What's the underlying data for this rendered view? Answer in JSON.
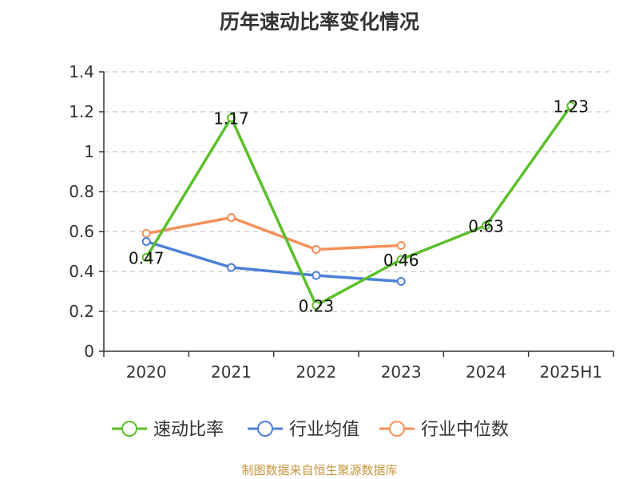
{
  "chart_data": {
    "type": "line",
    "title": "历年速动比率变化情况",
    "categories": [
      "2020",
      "2021",
      "2022",
      "2023",
      "2024",
      "2025H1"
    ],
    "ylim": [
      0,
      1.4
    ],
    "yticks": [
      "0",
      "0.2",
      "0.4",
      "0.6",
      "0.8",
      "1",
      "1.2",
      "1.4"
    ],
    "grid": true,
    "legend_position": "bottom",
    "series": [
      {
        "name": "速动比率",
        "color": "#5bbf2a",
        "values": [
          0.47,
          1.17,
          0.23,
          0.46,
          0.63,
          1.23
        ],
        "labels": [
          "0.47",
          "1.17",
          "0.23",
          "0.46",
          "0.63",
          "1.23"
        ]
      },
      {
        "name": "行业均值",
        "color": "#4c7fd8",
        "values": [
          0.55,
          0.42,
          0.38,
          0.35,
          null,
          null
        ]
      },
      {
        "name": "行业中位数",
        "color": "#f5905a",
        "values": [
          0.59,
          0.67,
          0.51,
          0.53,
          null,
          null
        ]
      }
    ]
  },
  "source_text": "制图数据来自恒生聚源数据库"
}
